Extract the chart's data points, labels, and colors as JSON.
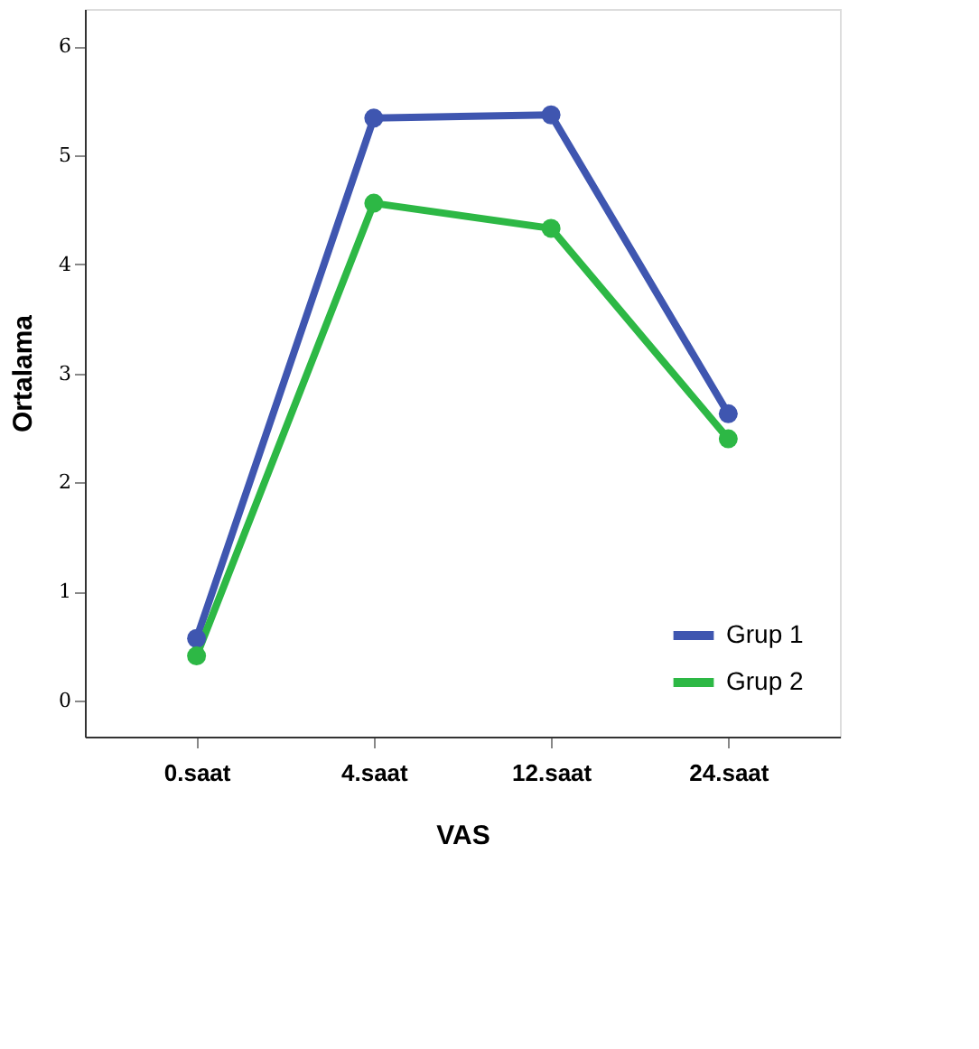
{
  "chart_data": {
    "type": "line",
    "xlabel": "VAS",
    "ylabel": "Ortalama",
    "categories": [
      "0.saat",
      "4.saat",
      "12.saat",
      "24.saat"
    ],
    "series": [
      {
        "name": "Grup 1",
        "color": "#3f56b0",
        "values": [
          0.57,
          5.34,
          5.37,
          2.63
        ]
      },
      {
        "name": "Grup 2",
        "color": "#2db845",
        "values": [
          0.41,
          4.56,
          4.33,
          2.4
        ]
      }
    ],
    "ylim": [
      -0.33,
      6.34
    ],
    "yticks": [
      0,
      1,
      2,
      3,
      4,
      5,
      6
    ],
    "grid": false,
    "legend": "bottom right",
    "marker": "circle",
    "line_style": "solid"
  }
}
